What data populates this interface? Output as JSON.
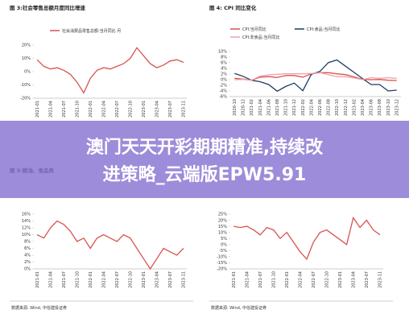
{
  "chart_data": [
    {
      "type": "line",
      "title": "图 3:社会零售总额月度同比增速",
      "categories": [
        "2021-01",
        null,
        "2021-04",
        null,
        "2021-07",
        null,
        "2021-10",
        null,
        "2022-01",
        null,
        "2022-04",
        null,
        "2022-07",
        null,
        "2022-10",
        null,
        "2023-01",
        null,
        "2023-04",
        null,
        "2023-07",
        null,
        "2023-11"
      ],
      "series": [
        {
          "name": "社会消费品零售总额:当月同比 月",
          "color": "#d9534f",
          "values": [
            9,
            4,
            2,
            3,
            1,
            -2,
            -8,
            -16,
            -5,
            1,
            3,
            2,
            4,
            6,
            10,
            18,
            12,
            6,
            3,
            5,
            8,
            9,
            7
          ]
        }
      ],
      "ylim": [
        -20,
        20
      ],
      "yticks": [
        {
          "value": -20,
          "label": "-20%"
        },
        {
          "value": -10,
          "label": "-10%"
        },
        {
          "value": 0,
          "label": "0%"
        },
        {
          "value": 10,
          "label": "10%"
        },
        {
          "value": 20,
          "label": "20%"
        }
      ]
    },
    {
      "type": "line",
      "title": "图 4: CPI 同比变化",
      "categories": [
        "2020-10",
        "2020-12",
        "2021-02",
        "2021-04",
        "2021-06",
        "2021-08",
        "2021-10",
        "2021-12",
        "2022-02",
        "2022-04",
        "2022-06",
        "2022-08",
        "2022-10",
        "2022-12",
        "2023-02",
        "2023-04",
        "2023-06",
        "2023-08",
        "2023-10",
        "2023-12"
      ],
      "series": [
        {
          "name": "CPI:当月同比",
          "color": "#d9534f",
          "values": [
            0.5,
            0.2,
            -0.2,
            0.9,
            1.1,
            0.8,
            1.5,
            1.5,
            0.9,
            2.1,
            2.5,
            2.5,
            2.1,
            1.8,
            1.0,
            0.1,
            0,
            0.1,
            -0.2,
            -0.3
          ]
        },
        {
          "name": "CPI:食品:当月同比",
          "color": "#1f3b63",
          "values": [
            2.2,
            1.2,
            -0.2,
            -0.7,
            -1.7,
            -4.1,
            -2.4,
            -1.2,
            -3.9,
            1.9,
            2.9,
            6.1,
            7.0,
            4.8,
            2.6,
            0.4,
            -1.7,
            -1.7,
            -4,
            -3.7
          ]
        },
        {
          "name": "CPI:非食品:当月同比",
          "color": "#f0a0a8",
          "values": [
            0,
            0.1,
            -0.2,
            1.3,
            1.7,
            1.9,
            2.1,
            2.1,
            2.1,
            2.2,
            2.5,
            1.8,
            1.1,
            1.1,
            0.6,
            0,
            0.7,
            0.5,
            0.7,
            0.5
          ]
        }
      ],
      "ylim": [
        -6,
        10
      ],
      "yticks": [
        {
          "value": -6,
          "label": "-6%"
        },
        {
          "value": -4,
          "label": "-4%"
        },
        {
          "value": -2,
          "label": "-2%"
        },
        {
          "value": 0,
          "label": "0%"
        },
        {
          "value": 2,
          "label": "2%"
        },
        {
          "value": 4,
          "label": "4%"
        },
        {
          "value": 6,
          "label": "6%"
        },
        {
          "value": 8,
          "label": "8%"
        },
        {
          "value": 10,
          "label": "10%"
        }
      ]
    },
    {
      "type": "line",
      "title": "图 5:粮油、食品类",
      "categories": [
        "2021-01",
        null,
        "2021-04",
        null,
        "2021-07",
        null,
        "2021-10",
        null,
        "2022-01",
        null,
        "2022-04",
        null,
        "2022-07",
        null,
        "2022-10",
        null,
        "2023-01",
        null,
        "2023-04",
        null,
        "2023-07",
        null,
        "2023-11"
      ],
      "series": [
        {
          "color": "#d9534f",
          "values": [
            10,
            9,
            12,
            14,
            13,
            11,
            8,
            9,
            6,
            9,
            10,
            9,
            8,
            10,
            9,
            6,
            3,
            0,
            3,
            6,
            5,
            4,
            6
          ]
        }
      ],
      "ylim": [
        0,
        16
      ],
      "yticks": [
        {
          "value": 0,
          "label": "0%"
        },
        {
          "value": 2,
          "label": "2%"
        },
        {
          "value": 4,
          "label": "4%"
        },
        {
          "value": 6,
          "label": "6%"
        },
        {
          "value": 8,
          "label": "8%"
        },
        {
          "value": 10,
          "label": "10%"
        },
        {
          "value": 12,
          "label": "12%"
        },
        {
          "value": 14,
          "label": "14%"
        },
        {
          "value": 16,
          "label": "16%"
        }
      ]
    },
    {
      "type": "line",
      "categories": [
        "2021-01",
        null,
        "2021-04",
        null,
        "2021-07",
        null,
        "2021-10",
        null,
        "2022-01",
        null,
        "2022-04",
        null,
        "2022-07",
        null,
        "2022-10",
        null,
        "2023-01",
        null,
        "2023-04",
        null,
        "2023-07",
        null,
        "2023-11"
      ],
      "series": [
        {
          "color": "#d9534f",
          "values": [
            15,
            14,
            15,
            12,
            8,
            14,
            12,
            5,
            10,
            2,
            -6,
            -12,
            2,
            10,
            12,
            8,
            4,
            0,
            22,
            14,
            20,
            12,
            8
          ]
        }
      ],
      "ylim": [
        -20,
        25
      ],
      "yticks": [
        {
          "value": -20,
          "label": "-20%"
        },
        {
          "value": -15,
          "label": "-15%"
        },
        {
          "value": -10,
          "label": "-10%"
        },
        {
          "value": -5,
          "label": "-5%"
        },
        {
          "value": 0,
          "label": "0%"
        },
        {
          "value": 5,
          "label": "5%"
        },
        {
          "value": 10,
          "label": "10%"
        },
        {
          "value": 15,
          "label": "15%"
        },
        {
          "value": 20,
          "label": "20%"
        },
        {
          "value": 25,
          "label": "25%"
        }
      ]
    }
  ],
  "sources": [
    "数据来源: Wind, 中信建投证券",
    "数据来源: Wind, 中信建投证券"
  ],
  "banner": [
    "澳门天天开彩期期精准,持续改",
    "进策略_云端版EPW5.91"
  ]
}
